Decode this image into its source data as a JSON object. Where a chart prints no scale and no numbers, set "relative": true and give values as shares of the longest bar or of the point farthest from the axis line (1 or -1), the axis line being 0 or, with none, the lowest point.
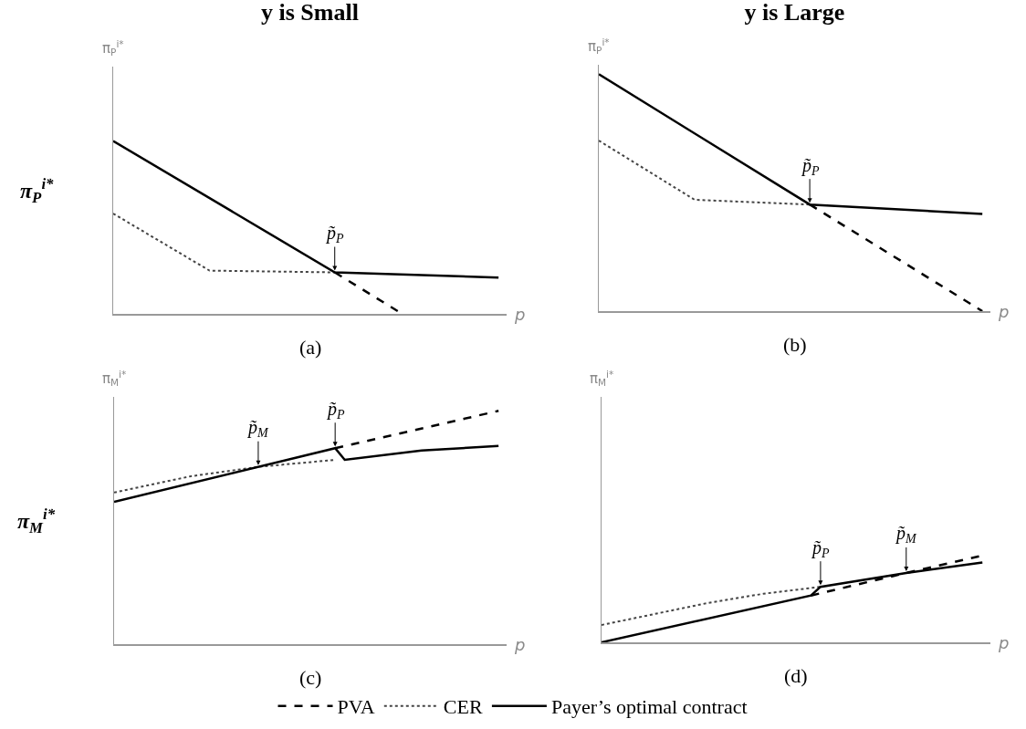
{
  "chart_data": [
    {
      "type": "line",
      "relative": true,
      "title": "y is Small",
      "ylabel": "π$_{P}$$^{i*}$",
      "xlabel": "p",
      "subtitle": "(a)",
      "categories": [
        null,
        null,
        null,
        null,
        null,
        null,
        null,
        null,
        null,
        null,
        null,
        null,
        null,
        null,
        null,
        null,
        null,
        null,
        null,
        null,
        null,
        null,
        null,
        null,
        null,
        null,
        null,
        null,
        null,
        null,
        null,
        null,
        null,
        null,
        null,
        null,
        null,
        null,
        null,
        null,
        null
      ],
      "annotations": [
        "π$_{P}$$^{i*}$",
        {
          "text": "p̃$_{P}$",
          "y": 0.24
        }
      ],
      "series": [
        {
          "color": "#000000",
          "line_style": "dashed",
          "values": [
            null,
            null,
            null,
            null,
            null,
            null,
            null,
            null,
            null,
            null,
            null,
            null,
            null,
            null,
            null,
            null,
            null,
            null,
            null,
            null,
            null,
            null,
            null,
            0.24,
            null,
            null,
            null,
            null,
            null,
            null,
            0,
            null,
            null,
            null,
            null,
            null,
            null,
            null,
            null,
            null,
            null
          ]
        },
        {
          "color": "#444444",
          "line_style": "dotted",
          "values": [
            0.58,
            null,
            null,
            null,
            null,
            null,
            null,
            null,
            null,
            null,
            0.25,
            null,
            null,
            null,
            null,
            null,
            null,
            null,
            null,
            null,
            null,
            null,
            null,
            0.24,
            null,
            null,
            null,
            null,
            null,
            null,
            null,
            null,
            null,
            null,
            null,
            null,
            null,
            null,
            null,
            null,
            null
          ]
        },
        {
          "color": "#000000",
          "line_style": "solid",
          "values": [
            1,
            null,
            null,
            null,
            null,
            null,
            null,
            null,
            null,
            null,
            null,
            null,
            null,
            null,
            null,
            null,
            null,
            null,
            null,
            null,
            null,
            null,
            null,
            0.24,
            null,
            null,
            null,
            null,
            null,
            null,
            null,
            null,
            null,
            null,
            null,
            null,
            null,
            null,
            null,
            null,
            0.21
          ]
        }
      ]
    },
    {
      "type": "line",
      "relative": true,
      "title": "y is Large",
      "xlabel": "p",
      "subtitle": "(b)",
      "categories": [
        null,
        null,
        null,
        null,
        null,
        null,
        null,
        null,
        null,
        null,
        null,
        null,
        null,
        null,
        null,
        null,
        null,
        null,
        null,
        null,
        null,
        null,
        null,
        null,
        null,
        null,
        null,
        null,
        null,
        null,
        null,
        null,
        null,
        null,
        null,
        null,
        null,
        null,
        null,
        null,
        null
      ],
      "annotations": [
        "π$_{P}$$^{i*}$",
        {
          "text": "p̃$_{P}$",
          "y": 0.45
        }
      ],
      "series": [
        {
          "color": "#000000",
          "line_style": "dashed",
          "values": [
            null,
            null,
            null,
            null,
            null,
            null,
            null,
            null,
            null,
            null,
            null,
            null,
            null,
            null,
            null,
            null,
            null,
            null,
            null,
            null,
            null,
            null,
            0.45,
            null,
            null,
            null,
            null,
            null,
            null,
            null,
            null,
            null,
            null,
            null,
            null,
            null,
            null,
            null,
            null,
            null,
            0
          ]
        },
        {
          "color": "#444444",
          "line_style": "dotted",
          "values": [
            0.72,
            null,
            null,
            null,
            null,
            null,
            null,
            null,
            null,
            null,
            0.47,
            null,
            null,
            null,
            null,
            null,
            null,
            null,
            null,
            null,
            null,
            null,
            0.45,
            null,
            null,
            null,
            null,
            null,
            null,
            null,
            null,
            null,
            null,
            null,
            null,
            null,
            null,
            null,
            null,
            null,
            null
          ]
        },
        {
          "color": "#000000",
          "line_style": "solid",
          "values": [
            1,
            null,
            null,
            null,
            null,
            null,
            null,
            null,
            null,
            null,
            null,
            null,
            null,
            null,
            null,
            null,
            null,
            null,
            null,
            null,
            null,
            null,
            0.45,
            null,
            null,
            null,
            null,
            null,
            null,
            null,
            null,
            null,
            null,
            null,
            null,
            null,
            null,
            null,
            null,
            null,
            0.41
          ]
        }
      ]
    },
    {
      "type": "line",
      "relative": true,
      "ylabel": "π$_{M}$$^{i*}$",
      "xlabel": "p",
      "subtitle": "(c)",
      "legend": "bottom",
      "categories": [
        null,
        null,
        null,
        null,
        null,
        null,
        null,
        null,
        null,
        null,
        null,
        null,
        null,
        null,
        null,
        null,
        null,
        null,
        null,
        null,
        null,
        null,
        null,
        null,
        null,
        null,
        null,
        null,
        null,
        null,
        null,
        null,
        null,
        null,
        null,
        null,
        null,
        null,
        null,
        null,
        null
      ],
      "annotations": [
        "π$_{M}$$^{i*}$",
        {
          "text": "p̃$_{M}$",
          "y": 0.76
        },
        {
          "text": "p̃$_{P}$",
          "y": 0.84
        }
      ],
      "series": [
        {
          "name": "PVA",
          "color": "#000000",
          "line_style": "dashed",
          "values": [
            null,
            null,
            null,
            null,
            null,
            null,
            null,
            null,
            null,
            null,
            null,
            null,
            null,
            null,
            null,
            null,
            null,
            null,
            null,
            null,
            null,
            null,
            null,
            0.84,
            null,
            null,
            null,
            null,
            null,
            null,
            null,
            null,
            null,
            null,
            null,
            null,
            null,
            null,
            null,
            null,
            1
          ]
        },
        {
          "name": "CER",
          "color": "#444444",
          "line_style": "dotted",
          "values": [
            0.65,
            null,
            null,
            null,
            null,
            null,
            null,
            null,
            0.72,
            null,
            null,
            null,
            null,
            null,
            null,
            0.76,
            null,
            null,
            null,
            null,
            null,
            null,
            null,
            0.79,
            null,
            null,
            null,
            null,
            null,
            null,
            null,
            null,
            null,
            null,
            null,
            null,
            null,
            null,
            null,
            null,
            null
          ]
        },
        {
          "name": "Payer’s optimal contract",
          "color": "#000000",
          "line_style": "solid",
          "values": [
            0.61,
            null,
            null,
            null,
            null,
            null,
            null,
            null,
            null,
            null,
            null,
            null,
            null,
            null,
            null,
            null,
            null,
            null,
            null,
            null,
            null,
            null,
            null,
            0.84,
            0.79,
            null,
            null,
            null,
            null,
            null,
            null,
            null,
            0.83,
            null,
            null,
            null,
            null,
            null,
            null,
            null,
            0.85
          ]
        }
      ]
    },
    {
      "type": "line",
      "relative": true,
      "xlabel": "p",
      "subtitle": "(d)",
      "categories": [
        null,
        null,
        null,
        null,
        null,
        null,
        null,
        null,
        null,
        null,
        null,
        null,
        null,
        null,
        null,
        null,
        null,
        null,
        null,
        null,
        null,
        null,
        null,
        null,
        null,
        null,
        null,
        null,
        null,
        null,
        null,
        null,
        null,
        null,
        null,
        null,
        null,
        null,
        null,
        null,
        null
      ],
      "annotations": [
        "π$_{M}$$^{i*}$",
        {
          "text": "p̃$_{P}$",
          "y": 0.64
        },
        {
          "text": "p̃$_{M}$",
          "y": 0.8
        }
      ],
      "series": [
        {
          "color": "#000000",
          "line_style": "dashed",
          "values": [
            null,
            null,
            null,
            null,
            null,
            null,
            null,
            null,
            null,
            null,
            null,
            null,
            null,
            null,
            null,
            null,
            null,
            null,
            null,
            null,
            null,
            null,
            0.54,
            null,
            null,
            null,
            null,
            null,
            null,
            null,
            null,
            null,
            0.8,
            null,
            null,
            null,
            null,
            null,
            null,
            null,
            1
          ]
        },
        {
          "color": "#444444",
          "line_style": "dotted",
          "values": [
            0.2,
            null,
            null,
            null,
            null,
            null,
            null,
            null,
            null,
            null,
            null,
            0.45,
            null,
            null,
            null,
            null,
            null,
            0.56,
            null,
            null,
            null,
            null,
            null,
            0.64,
            null,
            null,
            null,
            null,
            null,
            null,
            null,
            null,
            null,
            null,
            null,
            null,
            null,
            null,
            null,
            null,
            null
          ]
        },
        {
          "color": "#000000",
          "line_style": "solid",
          "values": [
            0,
            null,
            null,
            null,
            null,
            null,
            null,
            null,
            null,
            null,
            null,
            null,
            null,
            null,
            null,
            null,
            null,
            null,
            null,
            null,
            null,
            null,
            0.54,
            0.64,
            null,
            null,
            null,
            null,
            null,
            null,
            null,
            null,
            0.8,
            null,
            null,
            null,
            null,
            null,
            null,
            null,
            0.92
          ]
        }
      ]
    }
  ]
}
